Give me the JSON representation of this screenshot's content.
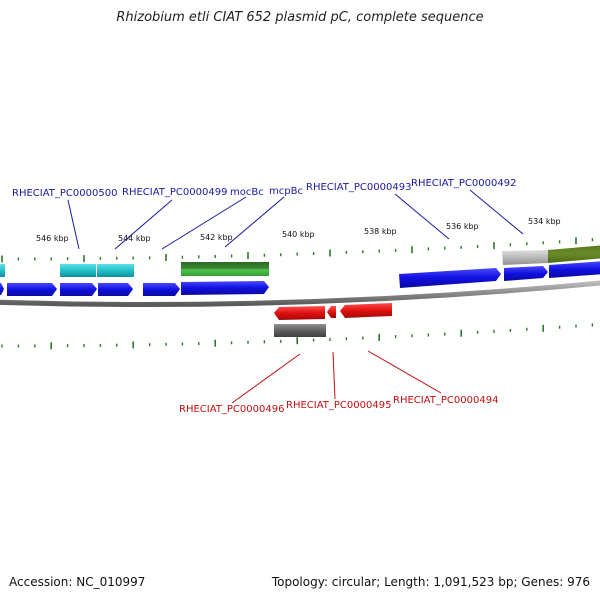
{
  "title": "Rhizobium etli CIAT 652 plasmid pC, complete sequence",
  "footer": {
    "accession": "Accession: NC_010997",
    "summary": "Topology: circular; Length: 1,091,523 bp; Genes: 976"
  },
  "scale_labels": [
    "546 kbp",
    "544 kbp",
    "542 kbp",
    "540 kbp",
    "538 kbp",
    "536 kbp",
    "534 kbp"
  ],
  "top_labels": [
    "RHECIAT_PC0000500",
    "RHECIAT_PC0000499",
    "mocBc",
    "mcpBc",
    "RHECIAT_PC0000493",
    "RHECIAT_PC0000492"
  ],
  "bottom_labels": [
    "RHECIAT_PC0000496",
    "RHECIAT_PC0000495",
    "RHECIAT_PC0000494"
  ],
  "colors": {
    "forward_cds": "#1010e0",
    "reverse_cds": "#e01010",
    "rna": "#20c0c8",
    "other": "#30a030",
    "pseudo": "#606060",
    "backbone": "#888888",
    "tick": "#2a7a2a",
    "top_label": "#1a1aa0",
    "bottom_label": "#c01010"
  }
}
